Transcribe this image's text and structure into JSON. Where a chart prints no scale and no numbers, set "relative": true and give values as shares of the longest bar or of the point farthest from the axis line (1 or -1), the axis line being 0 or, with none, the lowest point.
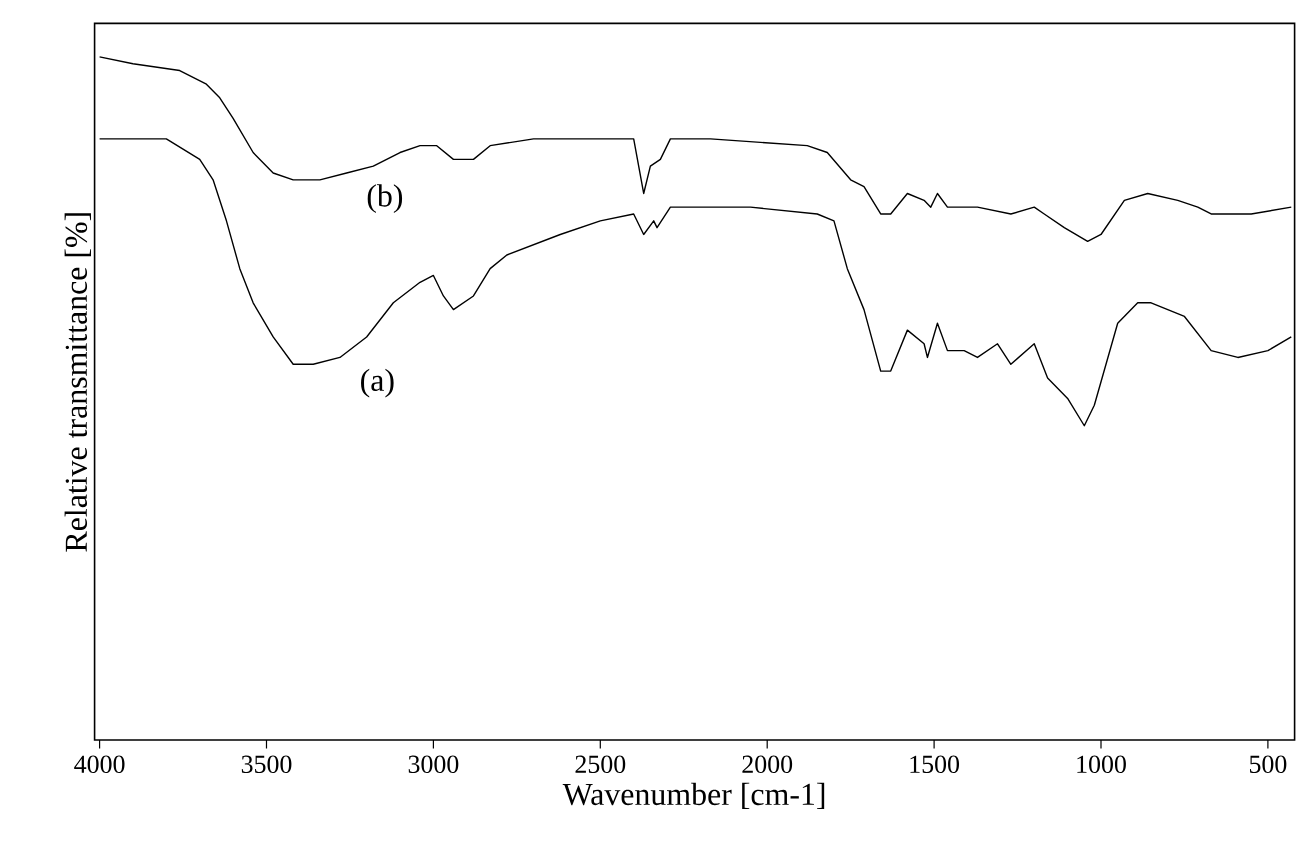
{
  "chart_data": {
    "type": "line",
    "relative": true,
    "xlabel": "Wavenumber [cm-1]",
    "ylabel": "Relative transmittance [%]",
    "xlim": [
      4015,
      420
    ],
    "xticks": [
      4000,
      3500,
      3000,
      2500,
      2000,
      1500,
      1000,
      500
    ],
    "grid": false,
    "marker": "none",
    "line_style": "solid",
    "series": [
      {
        "name": "(b)",
        "color": "#000000",
        "x": [
          4000,
          3900,
          3760,
          3680,
          3640,
          3600,
          3540,
          3480,
          3420,
          3340,
          3260,
          3180,
          3100,
          3040,
          2990,
          2940,
          2880,
          2830,
          2700,
          2480,
          2400,
          2370,
          2350,
          2320,
          2290,
          2170,
          1880,
          1820,
          1750,
          1710,
          1660,
          1630,
          1580,
          1530,
          1510,
          1490,
          1460,
          1370,
          1270,
          1200,
          1170,
          1110,
          1040,
          1000,
          930,
          860,
          770,
          710,
          670,
          550,
          430
        ],
        "values": [
          1.0,
          0.99,
          0.98,
          0.96,
          0.94,
          0.91,
          0.86,
          0.83,
          0.82,
          0.82,
          0.83,
          0.84,
          0.86,
          0.87,
          0.87,
          0.85,
          0.85,
          0.87,
          0.88,
          0.88,
          0.88,
          0.8,
          0.84,
          0.85,
          0.88,
          0.88,
          0.87,
          0.86,
          0.82,
          0.81,
          0.77,
          0.77,
          0.8,
          0.79,
          0.78,
          0.8,
          0.78,
          0.78,
          0.77,
          0.78,
          0.77,
          0.75,
          0.73,
          0.74,
          0.79,
          0.8,
          0.79,
          0.78,
          0.77,
          0.77,
          0.78
        ]
      },
      {
        "name": "(a)",
        "color": "#000000",
        "x": [
          4000,
          3800,
          3700,
          3660,
          3620,
          3580,
          3540,
          3480,
          3420,
          3360,
          3280,
          3200,
          3120,
          3040,
          3000,
          2970,
          2940,
          2880,
          2830,
          2780,
          2620,
          2500,
          2400,
          2370,
          2340,
          2330,
          2290,
          2050,
          1850,
          1800,
          1760,
          1710,
          1660,
          1630,
          1580,
          1530,
          1520,
          1490,
          1460,
          1410,
          1370,
          1310,
          1270,
          1200,
          1160,
          1100,
          1050,
          1020,
          950,
          890,
          850,
          750,
          670,
          590,
          500,
          430
        ],
        "values": [
          0.88,
          0.88,
          0.85,
          0.82,
          0.76,
          0.69,
          0.64,
          0.59,
          0.55,
          0.55,
          0.56,
          0.59,
          0.64,
          0.67,
          0.68,
          0.65,
          0.63,
          0.65,
          0.69,
          0.71,
          0.74,
          0.76,
          0.77,
          0.74,
          0.76,
          0.75,
          0.78,
          0.78,
          0.77,
          0.76,
          0.69,
          0.63,
          0.54,
          0.54,
          0.6,
          0.58,
          0.56,
          0.61,
          0.57,
          0.57,
          0.56,
          0.58,
          0.55,
          0.58,
          0.53,
          0.5,
          0.46,
          0.49,
          0.61,
          0.64,
          0.64,
          0.62,
          0.57,
          0.56,
          0.57,
          0.59
        ]
      }
    ]
  }
}
